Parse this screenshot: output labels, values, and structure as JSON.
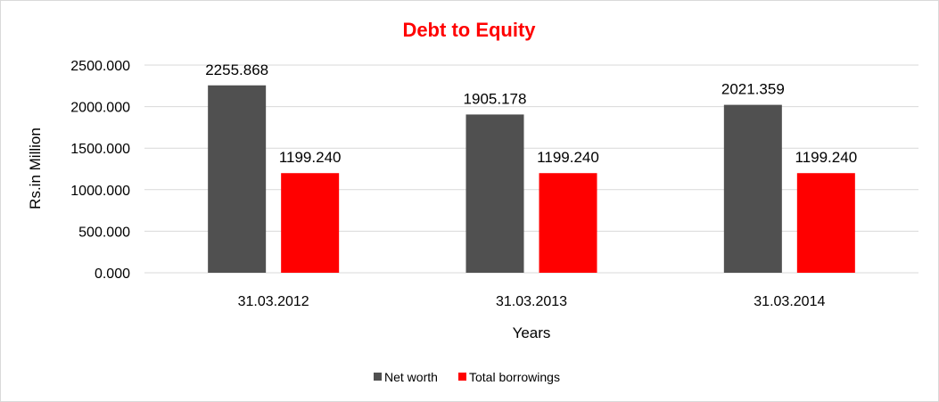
{
  "chart_data": {
    "type": "bar",
    "title": "Debt to Equity",
    "xlabel": "Years",
    "ylabel": "Rs.in Million",
    "categories": [
      "31.03.2012",
      "31.03.2013",
      "31.03.2014"
    ],
    "series": [
      {
        "name": "Net worth",
        "color": "#505050",
        "values": [
          2255.868,
          1905.178,
          2021.359
        ],
        "labels": [
          "2255.868",
          "1905.178",
          "2021.359"
        ]
      },
      {
        "name": "Total borrowings",
        "color": "#ff0000",
        "values": [
          1199.24,
          1199.24,
          1199.24
        ],
        "labels": [
          "1199.240",
          "1199.240",
          "1199.240"
        ]
      }
    ],
    "ylim": [
      0,
      2500
    ],
    "yticks": [
      "0.000",
      "500.000",
      "1000.000",
      "1500.000",
      "2000.000",
      "2500.000"
    ],
    "grid": true,
    "legend": "bottom",
    "title_color": "#ff0000"
  }
}
